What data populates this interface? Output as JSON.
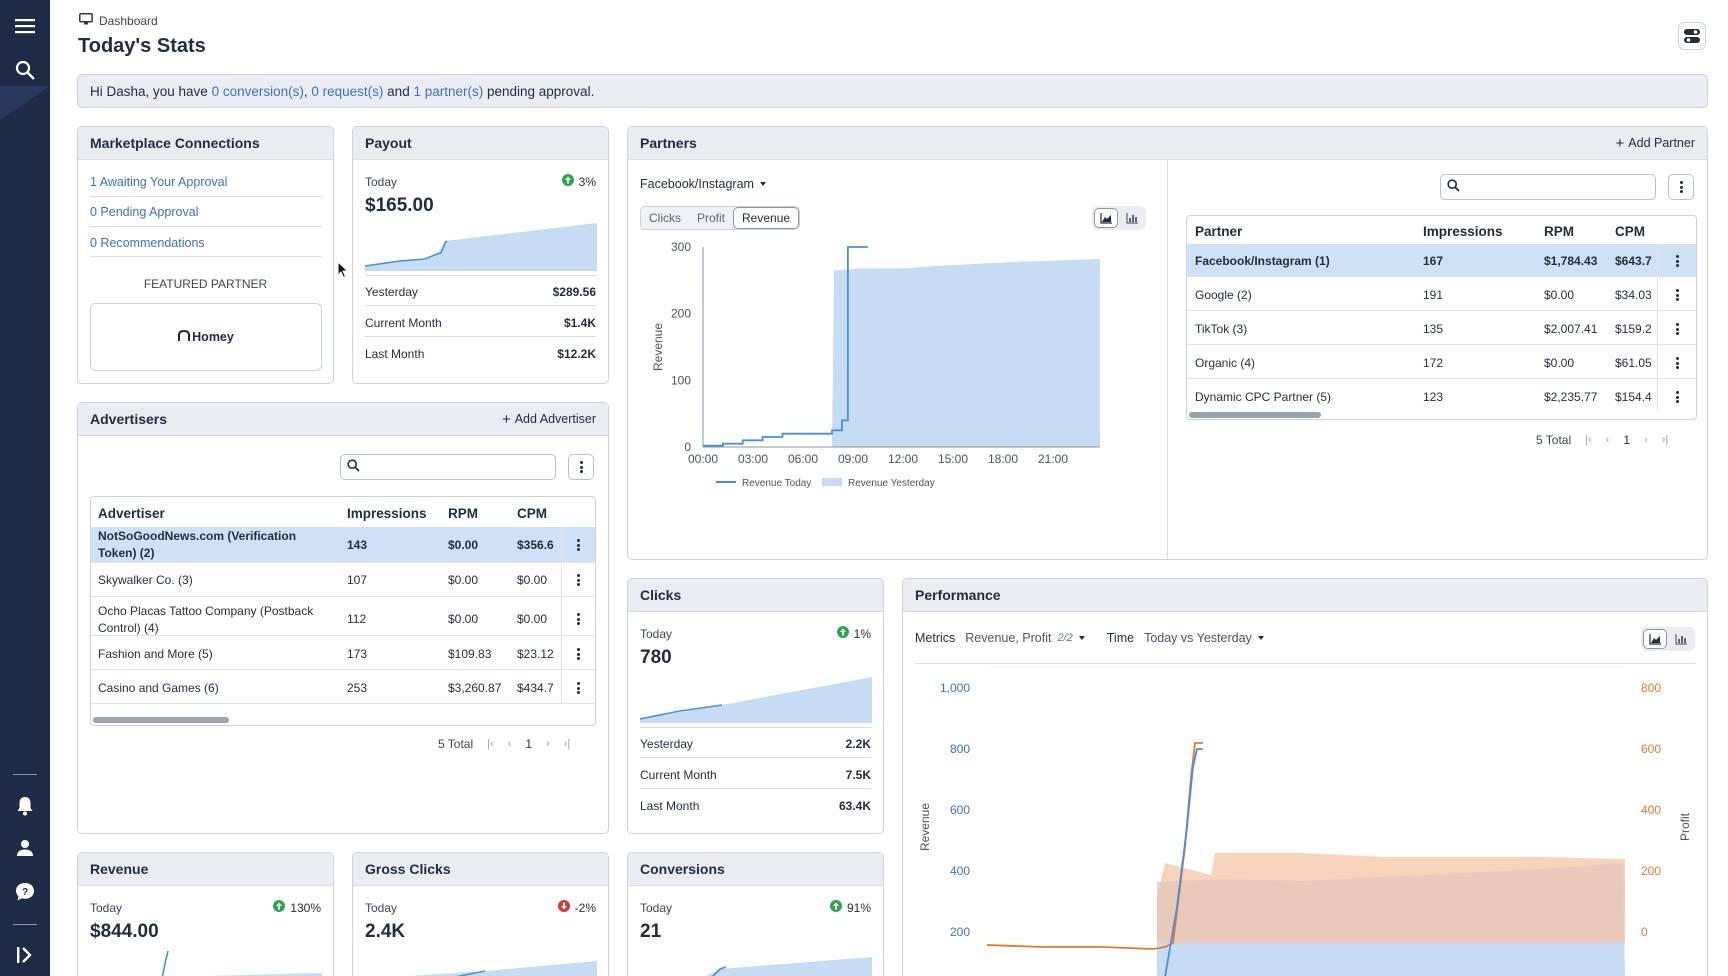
{
  "breadcrumb": "Dashboard",
  "page_title": "Today's Stats",
  "banner": {
    "prefix": "Hi Dasha, you have ",
    "conversions": "0 conversion(s)",
    "sep1": ", ",
    "requests": "0 request(s)",
    "sep2": " and ",
    "partners": "1 partner(s)",
    "suffix": " pending approval."
  },
  "marketplace": {
    "title": "Marketplace Connections",
    "links": [
      "1 Awaiting Your Approval",
      "0 Pending Approval",
      "0 Recommendations"
    ],
    "featured_label": "FEATURED PARTNER",
    "featured_logo": "Homey"
  },
  "payout": {
    "title": "Payout",
    "today_label": "Today",
    "change": "3%",
    "value": "$165.00",
    "rows": [
      {
        "label": "Yesterday",
        "value": "$289.56"
      },
      {
        "label": "Current Month",
        "value": "$1.4K"
      },
      {
        "label": "Last Month",
        "value": "$12.2K"
      }
    ]
  },
  "advertisers": {
    "title": "Advertisers",
    "add_label": "Add Advertiser",
    "columns": [
      "Advertiser",
      "Impressions",
      "RPM",
      "CPM"
    ],
    "rows": [
      {
        "name": "NotSoGoodNews.com (Verification",
        "name2": "Token) (2)",
        "impressions": "143",
        "rpm": "$0.00",
        "cpm": "$356.6"
      },
      {
        "name": "Skywalker Co. (3)",
        "impressions": "107",
        "rpm": "$0.00",
        "cpm": "$0.00"
      },
      {
        "name": "Ocho Placas Tattoo Company (Postback",
        "name2": "Control) (4)",
        "impressions": "112",
        "rpm": "$0.00",
        "cpm": "$0.00"
      },
      {
        "name": "Fashion and More (5)",
        "impressions": "173",
        "rpm": "$109.83",
        "cpm": "$23.12"
      },
      {
        "name": "Casino and Games (6)",
        "impressions": "253",
        "rpm": "$3,260.87",
        "cpm": "$434.7"
      }
    ],
    "total": "5 Total",
    "page": "1"
  },
  "partners": {
    "title": "Partners",
    "add_label": "Add Partner",
    "source": "Facebook/Instagram",
    "metric_tabs": [
      "Clicks",
      "Profit",
      "Revenue"
    ],
    "active_tab": "Revenue",
    "columns": [
      "Partner",
      "Impressions",
      "RPM",
      "CPM"
    ],
    "rows": [
      {
        "name": "Facebook/Instagram (1)",
        "impressions": "167",
        "rpm": "$1,784.43",
        "cpm": "$643.7"
      },
      {
        "name": "Google (2)",
        "impressions": "191",
        "rpm": "$0.00",
        "cpm": "$34.03"
      },
      {
        "name": "TikTok (3)",
        "impressions": "135",
        "rpm": "$2,007.41",
        "cpm": "$159.2"
      },
      {
        "name": "Organic (4)",
        "impressions": "172",
        "rpm": "$0.00",
        "cpm": "$61.05"
      },
      {
        "name": "Dynamic CPC Partner (5)",
        "impressions": "123",
        "rpm": "$2,235.77",
        "cpm": "$154.4"
      }
    ],
    "total": "5 Total",
    "page": "1"
  },
  "clicks": {
    "title": "Clicks",
    "today_label": "Today",
    "change": "1%",
    "value": "780",
    "rows": [
      {
        "label": "Yesterday",
        "value": "2.2K"
      },
      {
        "label": "Current Month",
        "value": "7.5K"
      },
      {
        "label": "Last Month",
        "value": "63.4K"
      }
    ]
  },
  "performance": {
    "title": "Performance",
    "metrics_label": "Metrics",
    "metrics_value": "Revenue, Profit",
    "metrics_count": "2/2",
    "time_label": "Time",
    "time_value": "Today vs Yesterday"
  },
  "revenue_card": {
    "title": "Revenue",
    "today_label": "Today",
    "change": "130%",
    "value": "$844.00"
  },
  "gross_clicks": {
    "title": "Gross Clicks",
    "today_label": "Today",
    "change": "-2%",
    "value": "2.4K"
  },
  "conversions": {
    "title": "Conversions",
    "today_label": "Today",
    "change": "91%",
    "value": "21"
  },
  "colors": {
    "accent_blue": "#3c73b5",
    "line_blue": "#4a8fd9",
    "area_blue": "#c6dcf5",
    "orange": "#e07a2e",
    "area_orange": "#f4c4a6",
    "up_green": "#2ea44f",
    "down_red": "#d93838",
    "sidebar": "#1d2b47"
  },
  "icons": [
    "menu-icon",
    "search-icon",
    "bell-icon",
    "user-icon",
    "help-icon",
    "expand-icon",
    "monitor-icon",
    "toggle-icon",
    "plus-icon",
    "area-chart-icon",
    "bar-chart-icon"
  ],
  "chart_data": [
    {
      "type": "area",
      "ylabel": "Revenue",
      "ylim": [
        0,
        300
      ],
      "yticks": [
        "0",
        "100",
        "200",
        "300"
      ],
      "xticks": [
        "00:00",
        "03:00",
        "06:00",
        "09:00",
        "12:00",
        "15:00",
        "18:00",
        "21:00"
      ],
      "legend": [
        "Revenue Today",
        "Revenue Yesterday"
      ],
      "series": [
        {
          "name": "Revenue Today",
          "kind": "line",
          "x": [
            0,
            1,
            2,
            3,
            4,
            5,
            6,
            6.5,
            7,
            7.3,
            8.3
          ],
          "y": [
            2,
            5,
            10,
            15,
            20,
            20,
            20,
            25,
            40,
            300,
            300
          ]
        },
        {
          "name": "Revenue Yesterday",
          "kind": "area",
          "x": [
            6.5,
            6.6,
            8,
            10,
            12,
            14,
            16,
            18,
            20,
            22,
            24
          ],
          "y": [
            0,
            265,
            268,
            268,
            272,
            275,
            278,
            280,
            282,
            285,
            290
          ]
        }
      ]
    },
    {
      "type": "area",
      "ylabel": "Revenue",
      "y2label": "Profit",
      "ylim": [
        0,
        1000
      ],
      "yticks": [
        "200",
        "400",
        "600",
        "800",
        "1,000"
      ],
      "y2ticks": [
        "0",
        "200",
        "400",
        "600",
        "800"
      ],
      "legend": [],
      "series": [
        {
          "name": "",
          "kind": "line",
          "color": "orange"
        },
        {
          "name": "",
          "kind": "line",
          "color": "blue"
        },
        {
          "name": "",
          "kind": "area",
          "color": "orange"
        },
        {
          "name": "",
          "kind": "area",
          "color": "blue"
        }
      ]
    }
  ]
}
